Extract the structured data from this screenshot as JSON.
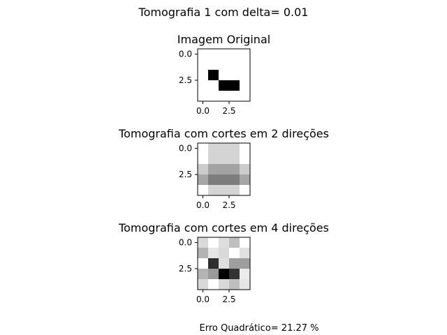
{
  "figure": {
    "suptitle": "Tomografia 1 com delta= 0.01",
    "footer": "Erro Quadrático= 21.27 %"
  },
  "chart_data": [
    {
      "type": "heatmap",
      "title": "Imagem Original",
      "colormap": "gray (0 = black, 1 = white)",
      "xticks": [
        "0.0",
        "2.5"
      ],
      "yticks": [
        "0.0",
        "2.5"
      ],
      "grid": false,
      "values": [
        [
          1,
          1,
          1,
          1,
          1
        ],
        [
          1,
          1,
          1,
          1,
          1
        ],
        [
          1,
          0,
          1,
          1,
          1
        ],
        [
          1,
          1,
          0,
          0,
          1
        ],
        [
          1,
          1,
          1,
          1,
          1
        ]
      ]
    },
    {
      "type": "heatmap",
      "title": "Tomografia com cortes em 2 direções",
      "colormap": "gray (0 = black, 1 = white)",
      "xticks": [
        "0.0",
        "2.5"
      ],
      "yticks": [
        "0.0",
        "2.5"
      ],
      "grid": false,
      "values": [
        [
          1.0,
          0.83,
          0.83,
          0.83,
          1.0
        ],
        [
          1.0,
          0.83,
          0.83,
          0.83,
          1.0
        ],
        [
          0.8,
          0.64,
          0.64,
          0.64,
          0.8
        ],
        [
          0.65,
          0.49,
          0.49,
          0.49,
          0.65
        ],
        [
          1.0,
          0.83,
          0.83,
          0.83,
          1.0
        ]
      ]
    },
    {
      "type": "heatmap",
      "title": "Tomografia com cortes em 4 direções",
      "colormap": "gray (0 = black, 1 = white)",
      "xticks": [
        "0.0",
        "2.5"
      ],
      "yticks": [
        "0.0",
        "2.5"
      ],
      "grid": false,
      "values": [
        [
          0.85,
          1.0,
          0.87,
          0.75,
          1.0
        ],
        [
          0.7,
          0.9,
          0.85,
          1.0,
          0.88
        ],
        [
          1.0,
          0.18,
          0.87,
          0.62,
          0.62
        ],
        [
          0.7,
          0.6,
          0.0,
          0.2,
          0.92
        ],
        [
          0.85,
          1.0,
          0.85,
          0.75,
          0.9
        ]
      ]
    }
  ]
}
